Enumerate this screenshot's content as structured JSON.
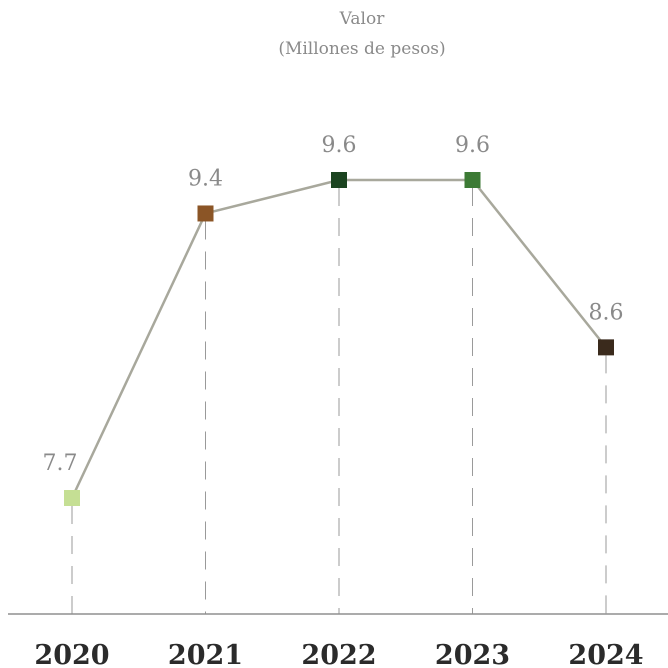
{
  "chart_data": {
    "type": "line",
    "title": "Valor",
    "subtitle": "(Millones de pesos)",
    "categories": [
      "2020",
      "2021",
      "2022",
      "2023",
      "2024"
    ],
    "series": [
      {
        "values": [
          7.7,
          9.4,
          9.6,
          9.6,
          8.6
        ],
        "value_labels": [
          "7.7",
          "9.4",
          "9.6",
          "9.6",
          "8.6"
        ],
        "line_color": "#a8a89c",
        "marker_colors": [
          "#c5df94",
          "#8b5526",
          "#1b4420",
          "#3c7a34",
          "#3a2a1c"
        ]
      }
    ],
    "ylim": [
      6.7,
      9.8
    ],
    "grid": false,
    "legend": "none"
  }
}
